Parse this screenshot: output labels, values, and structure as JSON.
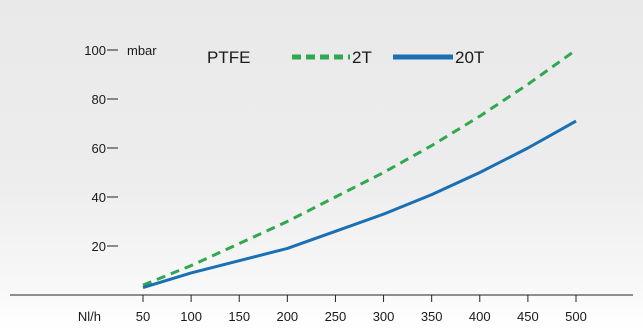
{
  "chart_data": {
    "type": "line",
    "title": "PTFE",
    "xlabel": "Nl/h",
    "ylabel": "mbar",
    "x": [
      50,
      100,
      150,
      200,
      250,
      300,
      350,
      400,
      450,
      500
    ],
    "xlim": [
      50,
      500
    ],
    "ylim": [
      0,
      100
    ],
    "x_ticks": [
      "50",
      "100",
      "150",
      "200",
      "250",
      "300",
      "350",
      "400",
      "450",
      "500"
    ],
    "y_ticks": [
      "20",
      "40",
      "60",
      "80",
      "100"
    ],
    "legend_position": "top",
    "grid": false,
    "series": [
      {
        "name": "2T",
        "style": "dashed",
        "color": "#2fa84f",
        "values": [
          4,
          12,
          21,
          30,
          40,
          50,
          61,
          73,
          86,
          100
        ]
      },
      {
        "name": "20T",
        "style": "solid",
        "color": "#1b6fb3",
        "values": [
          3,
          9,
          14,
          19,
          26,
          33,
          41,
          50,
          60,
          71
        ]
      }
    ]
  }
}
